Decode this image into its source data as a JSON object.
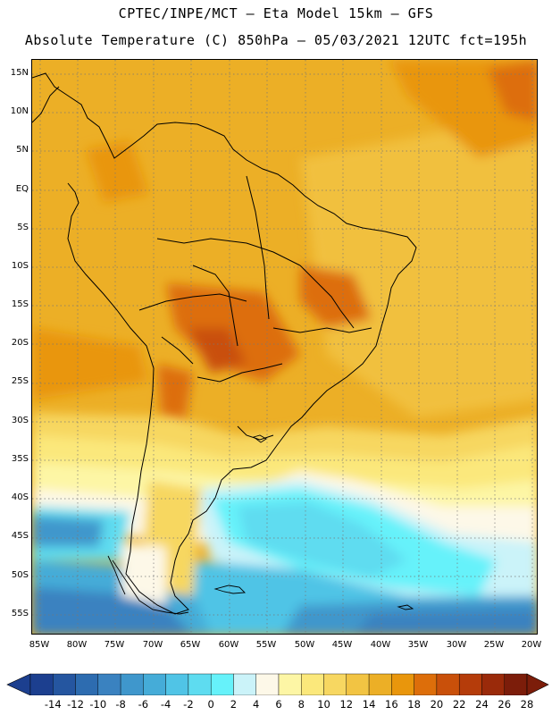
{
  "header": {
    "line1": "CPTEC/INPE/MCT –  Eta Model 15km – GFS",
    "line2": "Absolute Temperature (C) 850hPa – 05/03/2021 12UTC fct=195h"
  },
  "map": {
    "lat_labels": [
      "15N",
      "10N",
      "5N",
      "EQ",
      "5S",
      "10S",
      "15S",
      "20S",
      "25S",
      "30S",
      "35S",
      "40S",
      "45S",
      "50S",
      "55S"
    ],
    "lon_labels": [
      "85W",
      "80W",
      "75W",
      "70W",
      "65W",
      "60W",
      "55W",
      "50W",
      "45W",
      "40W",
      "35W",
      "30W",
      "25W",
      "20W"
    ]
  },
  "colorbar": {
    "labels": [
      "-14",
      "-12",
      "-10",
      "-8",
      "-6",
      "-4",
      "-2",
      "0",
      "2",
      "4",
      "6",
      "8",
      "10",
      "12",
      "14",
      "16",
      "18",
      "20",
      "22",
      "24",
      "26",
      "28"
    ],
    "colors": [
      "#1c3f8f",
      "#2556a0",
      "#2d6cb0",
      "#3a82c0",
      "#3f97cc",
      "#45acd8",
      "#50c4e6",
      "#5edcf0",
      "#66f2fa",
      "#cbf3f9",
      "#fdf8e8",
      "#fdf6a5",
      "#fbe87b",
      "#f7d761",
      "#f2c443",
      "#ecaf26",
      "#e9960c",
      "#dd6e0a",
      "#c9500a",
      "#b53c0a",
      "#9a2a0a",
      "#7c1d0a"
    ]
  }
}
